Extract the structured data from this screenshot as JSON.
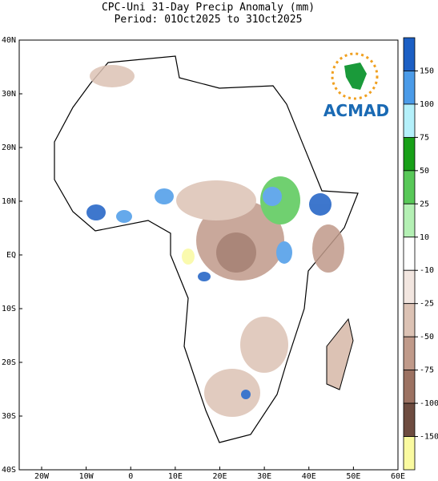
{
  "header": {
    "title": "CPC-Uni 31-Day Precip Anomaly (mm)",
    "subtitle": "Period: 01Oct2025 to 31Oct2025"
  },
  "map": {
    "xticks": [
      "20W",
      "10W",
      "0",
      "10E",
      "20E",
      "30E",
      "40E",
      "50E",
      "60E"
    ],
    "yticks": [
      "40N",
      "30N",
      "20N",
      "10N",
      "EQ",
      "10S",
      "20S",
      "30S",
      "40S"
    ]
  },
  "colorbar": {
    "labels": [
      150,
      100,
      75,
      50,
      25,
      10,
      -10,
      -25,
      -50,
      -75,
      -100,
      -150
    ],
    "colors": [
      "#1c5fc4",
      "#4b9be8",
      "#b4f0fa",
      "#18a018",
      "#58c858",
      "#b4f0b4",
      "#ffffff",
      "#f2e6e0",
      "#dcc2b4",
      "#c09a8a",
      "#9c7262",
      "#6e4c40",
      "#fafaa0"
    ]
  },
  "logo": {
    "text": "ACMAD"
  }
}
